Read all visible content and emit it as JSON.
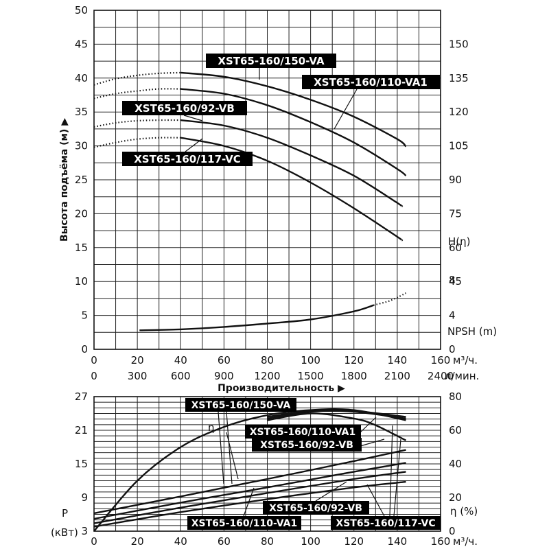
{
  "chart_data": [
    {
      "type": "line",
      "title": "",
      "xlabel": "Производительность",
      "xunit": "м³/ч.",
      "x2unit": "л/мин.",
      "ylabel": "Высота подъёма (м)",
      "y2label": "H(η)",
      "y3label": "NPSH (m)",
      "xlim": [
        0,
        160
      ],
      "ylim": [
        0,
        50
      ],
      "x_ticks": [
        0,
        20,
        40,
        60,
        80,
        100,
        120,
        140,
        160
      ],
      "x2_ticks": [
        0,
        300,
        600,
        900,
        1200,
        1500,
        1800,
        2100,
        2400
      ],
      "y_ticks": [
        0,
        5,
        10,
        15,
        20,
        25,
        30,
        35,
        40,
        45,
        50
      ],
      "y2_ticks": [
        150,
        135,
        120,
        105,
        90,
        75,
        60,
        45
      ],
      "y3_ticks": [
        0,
        4,
        8
      ],
      "grid": true,
      "series": [
        {
          "name": "XST65-160/150-VA",
          "x": [
            40,
            60,
            80,
            100,
            120,
            140,
            144
          ],
          "y": [
            40.8,
            40.2,
            38.8,
            36.8,
            34.3,
            31.0,
            29.9
          ],
          "dotted_x": [
            0,
            10,
            20,
            30,
            40
          ],
          "dotted_y": [
            39.0,
            39.9,
            40.4,
            40.7,
            40.8
          ]
        },
        {
          "name": "XST65-160/110-VA1",
          "x": [
            40,
            60,
            80,
            100,
            120,
            140,
            144
          ],
          "y": [
            38.4,
            37.7,
            36.0,
            33.5,
            30.5,
            26.6,
            25.6
          ],
          "dotted_x": [
            0,
            10,
            20,
            30,
            40
          ],
          "dotted_y": [
            37.0,
            37.7,
            38.1,
            38.4,
            38.4
          ]
        },
        {
          "name": "XST65-160/92-VB",
          "x": [
            40,
            60,
            80,
            100,
            120,
            140,
            142
          ],
          "y": [
            33.8,
            33.0,
            31.2,
            28.6,
            25.6,
            21.6,
            21.1
          ],
          "dotted_x": [
            0,
            10,
            20,
            30,
            40
          ],
          "dotted_y": [
            32.8,
            33.4,
            33.7,
            33.8,
            33.8
          ]
        },
        {
          "name": "XST65-160/117-VC",
          "x": [
            40,
            60,
            80,
            100,
            120,
            140,
            142
          ],
          "y": [
            31.2,
            30.0,
            27.8,
            24.6,
            20.8,
            16.6,
            16.1
          ],
          "dotted_x": [
            0,
            10,
            20,
            30,
            40
          ],
          "dotted_y": [
            29.8,
            30.5,
            31.0,
            31.2,
            31.2
          ]
        }
      ],
      "npsh": {
        "name": "NPSH (m)",
        "x": [
          21,
          40,
          60,
          80,
          100,
          120,
          129
        ],
        "y": [
          2.8,
          2.95,
          3.3,
          3.8,
          4.4,
          5.6,
          6.5
        ],
        "dotted_x": [
          129,
          136,
          141,
          144
        ],
        "dotted_y": [
          6.5,
          7.1,
          7.8,
          8.3
        ]
      }
    },
    {
      "type": "line",
      "title": "",
      "xunit": "м³/ч.",
      "ylabel": "P (кВт)",
      "y2label": "η (%)",
      "xlim": [
        0,
        160
      ],
      "ylim": [
        3,
        27
      ],
      "y2lim": [
        0,
        80
      ],
      "x_ticks": [
        0,
        20,
        40,
        60,
        80,
        100,
        120,
        140,
        160
      ],
      "y_ticks": [
        3,
        9,
        15,
        21,
        27
      ],
      "y2_ticks": [
        0,
        20,
        40,
        60,
        80
      ],
      "grid": true,
      "power_series": [
        {
          "name": "XST65-160/150-VA",
          "x": [
            0,
            40,
            80,
            120,
            144
          ],
          "y": [
            6.2,
            9.2,
            12.3,
            15.5,
            17.5
          ]
        },
        {
          "name": "XST65-160/110-VA1",
          "x": [
            0,
            40,
            80,
            120,
            144
          ],
          "y": [
            5.2,
            8.1,
            10.8,
            13.6,
            15.2
          ]
        },
        {
          "name": "XST65-160/92-VB",
          "x": [
            0,
            40,
            80,
            120,
            144
          ],
          "y": [
            4.4,
            7.2,
            9.8,
            12.3,
            13.6
          ]
        },
        {
          "name": "XST65-160/117-VC",
          "x": [
            0,
            40,
            80,
            120,
            144
          ],
          "y": [
            3.8,
            6.4,
            8.7,
            10.8,
            11.8
          ]
        }
      ],
      "efficiency_series": [
        {
          "name": "XST65-160/150-VA",
          "x": [
            0,
            20,
            40,
            60,
            80,
            100,
            120,
            144
          ],
          "y": [
            0,
            30,
            50,
            62,
            69,
            72,
            72,
            66
          ]
        },
        {
          "name": "XST65-160/110-VA1",
          "x": [
            80,
            100,
            120,
            144
          ],
          "y": [
            68,
            71.5,
            71.5,
            68
          ]
        },
        {
          "name": "XST65-160/92-VB",
          "x": [
            80,
            100,
            120,
            144
          ],
          "y": [
            67,
            71,
            71,
            67
          ]
        },
        {
          "name": "XST65-160/117-VC",
          "x": [
            80,
            100,
            120,
            130,
            144
          ],
          "y": [
            66,
            70,
            67,
            63,
            54
          ]
        }
      ]
    }
  ],
  "labels": {
    "top": {
      "y_axis_title": "Высота подъёма (м) ▶",
      "x_axis_title": "Производительность ▶",
      "h_eta": "H(η)",
      "npsh": "NPSH (m)",
      "unit_flow": "м³/ч.",
      "unit_lpm": "л/мин."
    },
    "bottom": {
      "p_label": "P",
      "p_unit": "(кВт)",
      "eta_label": "η (%)",
      "eta_mark": "η",
      "unit_flow": "м³/ч."
    }
  },
  "tags": {
    "top_va": "XST65-160/150-VA",
    "top_va1": "XST65-160/110-VA1",
    "top_vb": "XST65-160/92-VB",
    "top_vc": "XST65-160/117-VC",
    "bot_va": "XST65-160/150-VA",
    "bot_va1": "XST65-160/110-VA1",
    "bot_vb": "XST65-160/92-VB",
    "bot_vb2": "XST65-160/92-VB",
    "bot_va1b": "XST65-160/110-VA1",
    "bot_vc": "XST65-160/117-VC"
  }
}
